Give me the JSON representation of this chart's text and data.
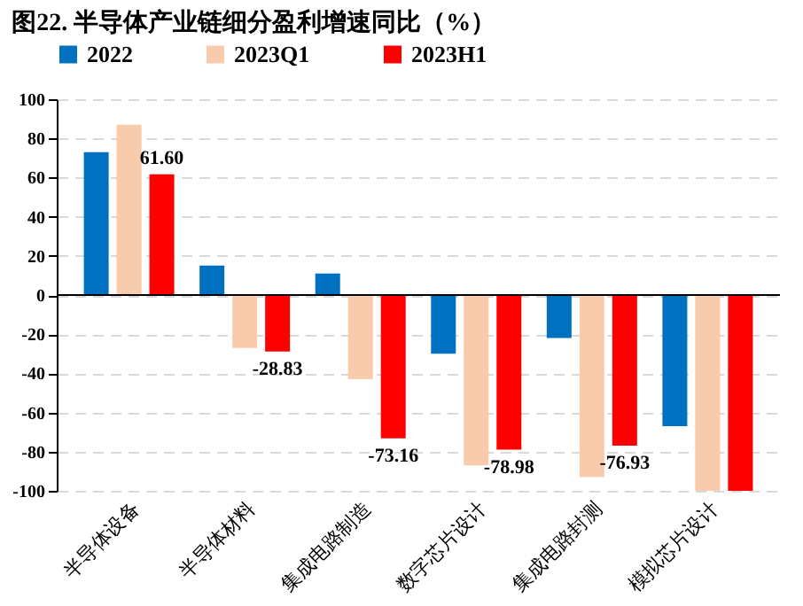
{
  "chart_data": {
    "type": "bar",
    "title": "图22. 半导体产业链细分盈利增速同比（%）",
    "categories": [
      "半导体设备",
      "半导体材料",
      "集成电路制造",
      "数字芯片设计",
      "集成电路封测",
      "模拟芯片设计"
    ],
    "series": [
      {
        "name": "2022",
        "color": "#0070c0",
        "values": [
          73,
          15,
          11,
          -30,
          -22,
          -67
        ]
      },
      {
        "name": "2023Q1",
        "color": "#f8cbad",
        "values": [
          87,
          -27,
          -43,
          -87,
          -93,
          -100
        ]
      },
      {
        "name": "2023H1",
        "color": "#ff0000",
        "values": [
          61.6,
          -28.83,
          -73.16,
          -78.98,
          -76.93,
          -100
        ],
        "value_labels": [
          "61.60",
          "-28.83",
          "-73.16",
          "-78.98",
          "-76.93",
          null
        ]
      }
    ],
    "ylim": [
      -100,
      100
    ],
    "yticks": [
      -100,
      -80,
      -60,
      -40,
      -20,
      0,
      20,
      40,
      60,
      80,
      100
    ],
    "grid": "y",
    "legend": "top"
  }
}
